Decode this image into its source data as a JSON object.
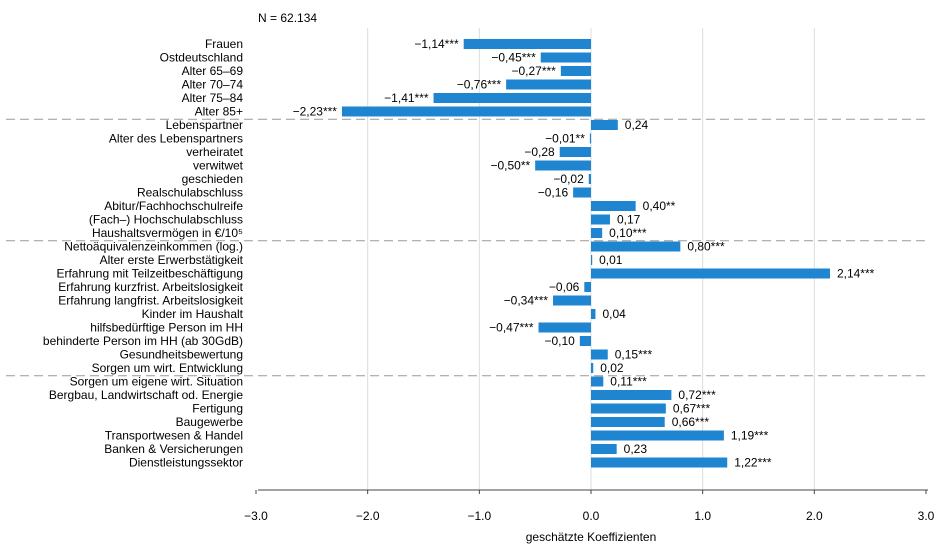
{
  "chart_data": {
    "type": "bar",
    "orientation": "horizontal",
    "note": "N = 62.134",
    "xlabel": "geschätzte Koeffizienten",
    "xlim": [
      -3.0,
      3.0
    ],
    "xticks": [
      -3.0,
      -2.0,
      -1.0,
      0.0,
      1.0,
      2.0,
      3.0
    ],
    "xtick_labels": [
      "−3.0",
      "−2.0",
      "−1.0",
      "0.0",
      "1.0",
      "2.0",
      "3.0"
    ],
    "grid": "vertical",
    "bar_color": "#1f85d0",
    "group_separator_color": "#999999",
    "group_separators_after": [
      5,
      14,
      24
    ],
    "categories": [
      "Frauen",
      "Ostdeutschland",
      "Alter 65–69",
      "Alter 70–74",
      "Alter 75–84",
      "Alter 85+",
      "Lebenspartner",
      "Alter des Lebenspartners",
      "verheiratet",
      "verwitwet",
      "geschieden",
      "Realschulabschluss",
      "Abitur/Fachhochschulreife",
      "(Fach–) Hochschulabschluss",
      "Haushaltsvermögen in €/10⁵",
      "Nettoäquivalenzeinkommen (log.)",
      "Alter erste Erwerbstätigkeit",
      "Erfahrung mit Teilzeitbeschäftigung",
      "Erfahrung kurzfrist. Arbeitslosigkeit",
      "Erfahrung langfrist. Arbeitslosigkeit",
      "Kinder im Haushalt",
      "hilfsbedürftige Person im HH",
      "behinderte Person im HH (ab 30GdB)",
      "Gesundheitsbewertung",
      "Sorgen um wirt. Entwicklung",
      "Sorgen um eigene wirt. Situation",
      "Bergbau, Landwirtschaft od. Energie",
      "Fertigung",
      "Baugewerbe",
      "Transportwesen & Handel",
      "Banken & Versicherungen",
      "Dienstleistungssektor"
    ],
    "values": [
      -1.14,
      -0.45,
      -0.27,
      -0.76,
      -1.41,
      -2.23,
      0.24,
      -0.01,
      -0.28,
      -0.5,
      -0.02,
      -0.16,
      0.4,
      0.17,
      0.1,
      0.8,
      0.01,
      2.14,
      -0.06,
      -0.34,
      0.04,
      -0.47,
      -0.1,
      0.15,
      0.02,
      0.11,
      0.72,
      0.67,
      0.66,
      1.19,
      0.23,
      1.22
    ],
    "value_labels": [
      "−1,14***",
      "−0,45***",
      "−0,27***",
      "−0,76***",
      "−1,41***",
      "−2,23***",
      "0,24",
      "−0,01**",
      "−0,28",
      "−0,50**",
      "−0,02",
      "−0,16",
      "0,40**",
      "0,17",
      "0,10***",
      "0,80***",
      "0,01",
      "2,14***",
      "−0,06",
      "−0,34***",
      "0,04",
      "−0,47***",
      "−0,10",
      "0,15***",
      "0,02",
      "0,11***",
      "0,72***",
      "0,67***",
      "0,66***",
      "1,19***",
      "0,23",
      "1,22***"
    ]
  }
}
